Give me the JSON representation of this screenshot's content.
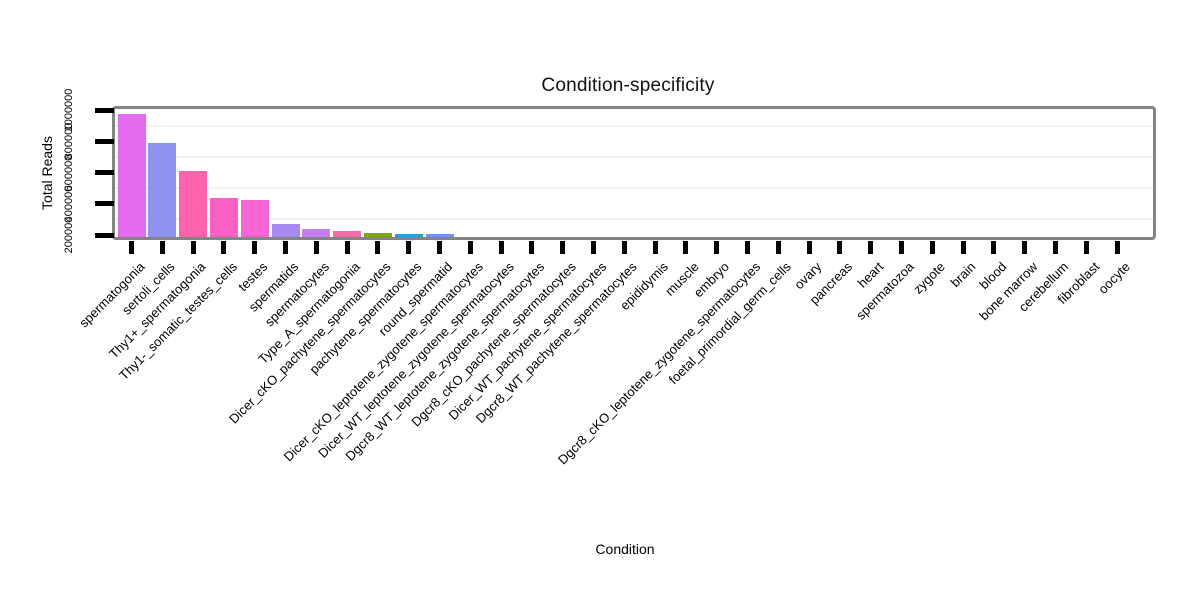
{
  "figure": {
    "title": "Condition-specificity",
    "xlabel": "Condition",
    "ylabel": "Total Reads"
  },
  "chart_data": {
    "type": "bar",
    "title": "Condition-specificity",
    "xlabel": "Condition",
    "ylabel": "Total Reads",
    "ylim": [
      200000,
      1000000
    ],
    "yticks": [
      200000,
      400000,
      600000,
      800000,
      1000000
    ],
    "grid": "faint horizontal gridlines",
    "legend": false,
    "categories": [
      "spermatogonia",
      "sertoli_cells",
      "Thy1+_spermatogonia",
      "Thy1-_somatic_testes_cells",
      "testes",
      "spermatids",
      "spermatocytes",
      "Type_A_spermatogonia",
      "Dicer_cKO_pachytene_spermatocytes",
      "pachytene_spermatocytes",
      "round_spermatid",
      "Dicer_cKO_leptotene_zygotene_spermatocytes",
      "Dicer_WT_leptotene_zygotene_spermatocytes",
      "Dgcr8_WT_leptotene_zygotene_spermatocytes",
      "Dgcr8_cKO_pachytene_spermatocytes",
      "Dicer_WT_pachytene_spermatocytes",
      "Dgcr8_WT_pachytene_spermatocytes",
      "epididymis",
      "muscle",
      "embryo",
      "Dgcr8_cKO_leptotene_zygotene_spermatocytes",
      "foetal_primordial_germ_cells",
      "ovary",
      "pancreas",
      "heart",
      "spermatozoa",
      "zygote",
      "brain",
      "blood",
      "bone marrow",
      "cerebellum",
      "fibroblast",
      "oocyte"
    ],
    "values": [
      975000,
      790000,
      610000,
      435000,
      425000,
      270000,
      240000,
      225000,
      210000,
      208000,
      207000,
      0,
      0,
      0,
      0,
      0,
      0,
      0,
      0,
      0,
      0,
      0,
      0,
      0,
      0,
      0,
      0,
      0,
      0,
      0,
      0,
      0,
      0
    ],
    "bar_colors": [
      "#e36bf0",
      "#9092f2",
      "#ff63ad",
      "#fb61c5",
      "#f964d7",
      "#a789f2",
      "#c67ff2",
      "#f56ca8",
      "#7fa800",
      "#28a0d8",
      "#6f93ee"
    ]
  }
}
